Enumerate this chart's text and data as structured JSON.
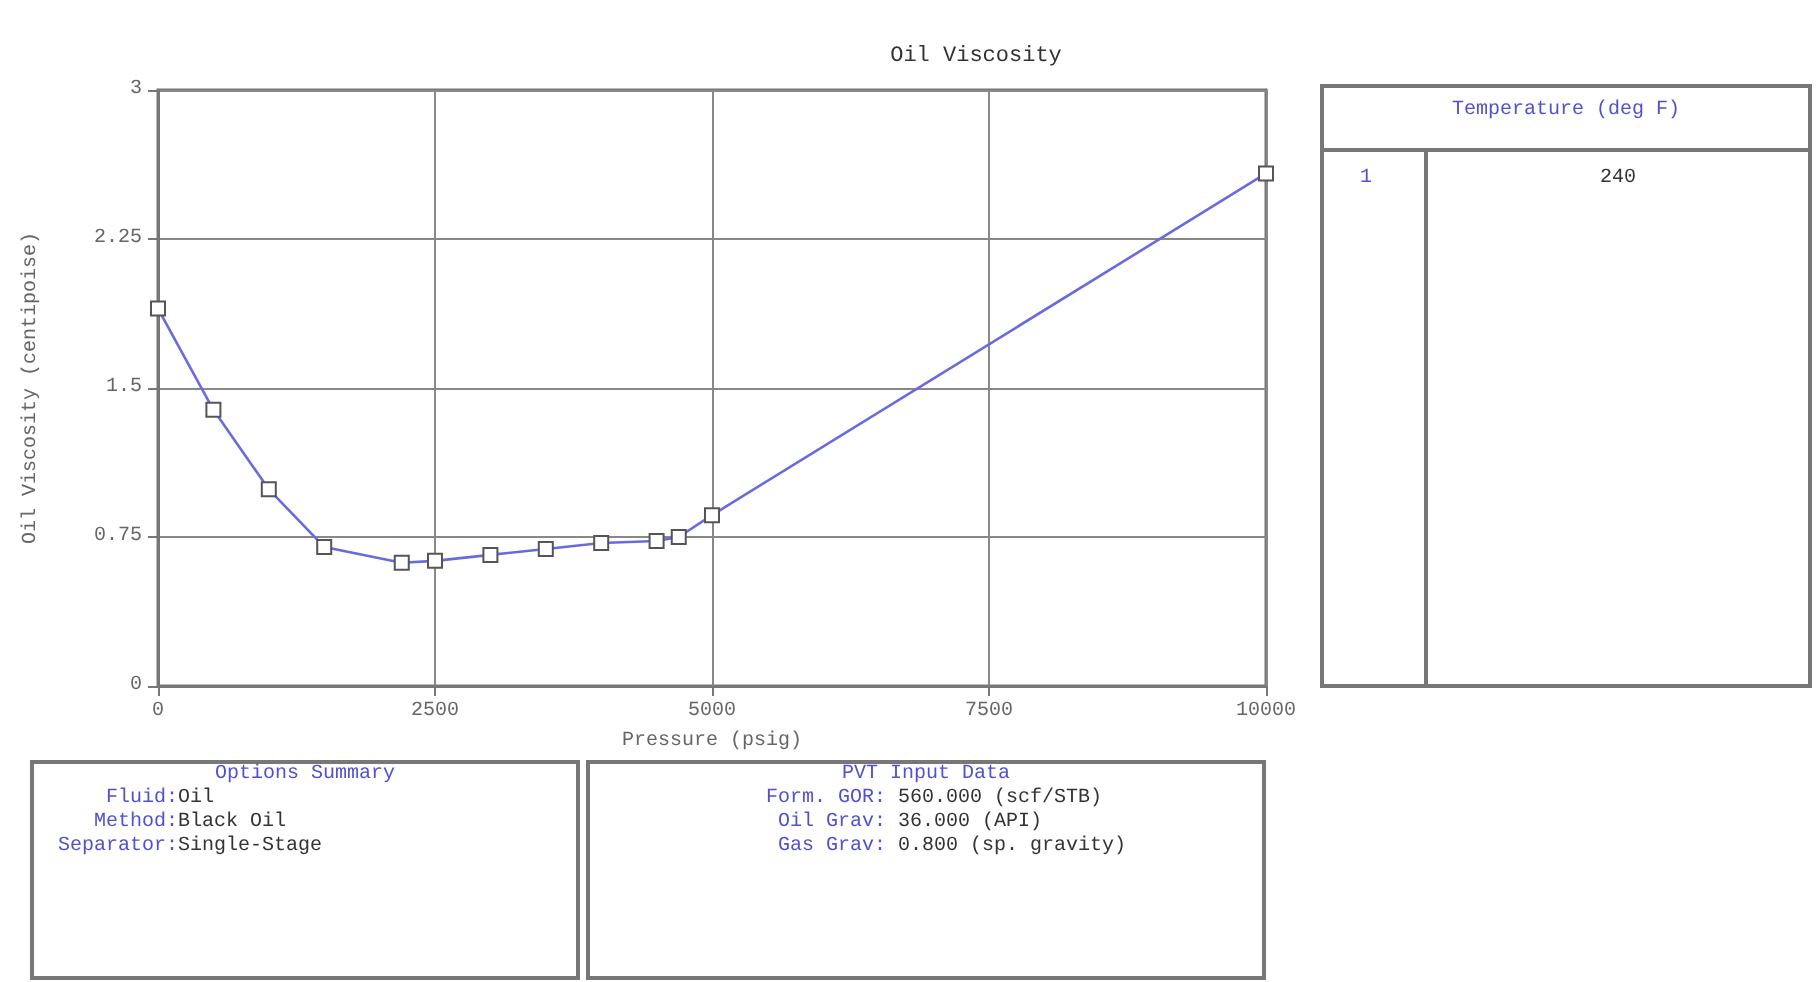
{
  "chart_data": {
    "type": "line",
    "title": "Oil Viscosity",
    "xlabel": "Pressure (psig)",
    "ylabel": "Oil Viscosity (centipoise)",
    "x": [
      0,
      500,
      1000,
      1500,
      2200,
      2500,
      3000,
      3500,
      4000,
      4500,
      4700,
      5000,
      10000
    ],
    "series": [
      {
        "color": "#6a6ae0",
        "values": [
          1.9,
          1.39,
          0.99,
          0.7,
          0.62,
          0.63,
          0.66,
          0.69,
          0.72,
          0.73,
          0.75,
          0.86,
          2.58
        ]
      }
    ],
    "xlim": [
      0,
      10000
    ],
    "xticks": [
      0,
      2500,
      5000,
      7500,
      10000
    ],
    "ylim": [
      0,
      3
    ],
    "yticks": [
      0,
      0.75,
      1.5,
      2.25,
      3
    ],
    "grid": true,
    "marker": "square",
    "line_style": "solid",
    "annotations": [
      "Temperature (deg F)",
      "1",
      "240",
      "Options Summary",
      "Fluid:Oil",
      "Method:Black Oil",
      "Separator:Single-Stage",
      "PVT Input Data",
      "Form. GOR: 560.000 (scf/STB)",
      "Oil Grav: 36.000 (API)",
      "Gas Grav: 0.800 (sp. gravity)"
    ]
  }
}
